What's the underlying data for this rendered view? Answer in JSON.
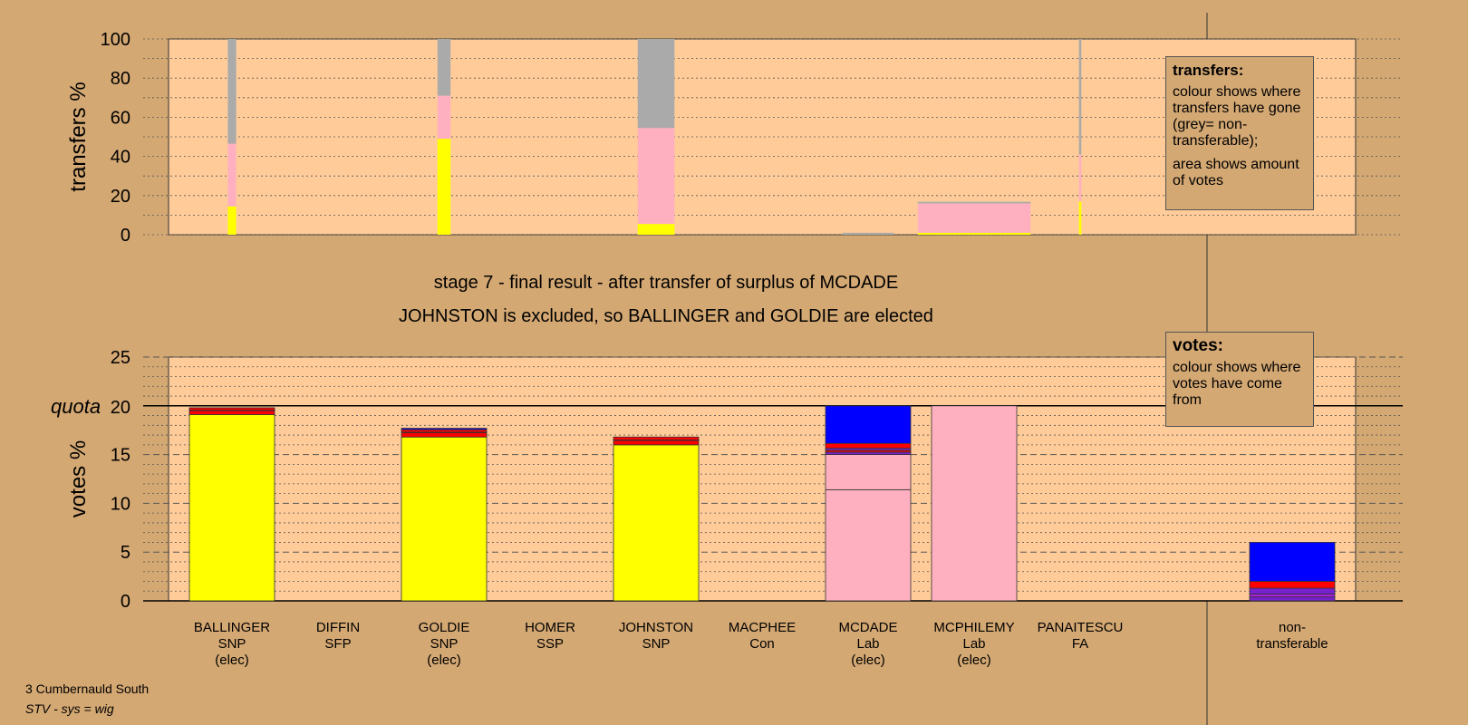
{
  "chart_data": [
    {
      "type": "bar",
      "subtype": "stacked-transfers",
      "ylabel": "transfers %",
      "ylim": [
        0,
        100
      ],
      "yticks": [
        0,
        20,
        40,
        60,
        80,
        100
      ],
      "columns": [
        {
          "candidate": "BALLINGER",
          "width_share": 0.007,
          "segments": [
            {
              "party": "SNP",
              "color": "#FFFF00",
              "value": 14.5
            },
            {
              "party": "Lab",
              "color": "#FFB0C0",
              "value": 32
            },
            {
              "party": "non-transferable",
              "color": "#AAAAAA",
              "value": 53.5
            }
          ]
        },
        {
          "candidate": "GOLDIE",
          "width_share": 0.011,
          "segments": [
            {
              "party": "SNP",
              "color": "#FFFF00",
              "value": 49
            },
            {
              "party": "Lab",
              "color": "#FFB0C0",
              "value": 22
            },
            {
              "party": "non-transferable",
              "color": "#AAAAAA",
              "value": 29
            }
          ]
        },
        {
          "candidate": "JOHNSTON",
          "width_share": 0.031,
          "segments": [
            {
              "party": "SNP",
              "color": "#FFFF00",
              "value": 5.5
            },
            {
              "party": "Lab",
              "color": "#FFB0C0",
              "value": 49
            },
            {
              "party": "non-transferable",
              "color": "#AAAAAA",
              "value": 45.5
            }
          ]
        },
        {
          "candidate": "MCDADE",
          "width_share": 0.043,
          "segments": [
            {
              "party": "non-transferable",
              "color": "#AAAAAA",
              "value": 1
            }
          ]
        },
        {
          "candidate": "MCPHILEMY",
          "width_share": 0.095,
          "segments": [
            {
              "party": "SNP",
              "color": "#FFFF00",
              "value": 1
            },
            {
              "party": "Lab",
              "color": "#FFB0C0",
              "value": 15
            },
            {
              "party": "non-transferable",
              "color": "#AAAAAA",
              "value": 0.8
            }
          ]
        },
        {
          "candidate": "PANAITESCU",
          "width_share": 0.002,
          "segments": [
            {
              "party": "SNP",
              "color": "#FFFF00",
              "value": 17
            },
            {
              "party": "Lab",
              "color": "#FFB0C0",
              "value": 24
            },
            {
              "party": "non-transferable",
              "color": "#AAAAAA",
              "value": 59
            }
          ]
        }
      ]
    },
    {
      "type": "bar",
      "subtype": "stacked-votes",
      "ylabel": "votes %",
      "ylim": [
        0,
        25
      ],
      "yticks": [
        0,
        5,
        10,
        15,
        20,
        25
      ],
      "quota": 20,
      "quota_label": "quota",
      "categories": [
        {
          "name": "BALLINGER",
          "party": "SNP",
          "status": "(elec)"
        },
        {
          "name": "DIFFIN",
          "party": "SFP",
          "status": ""
        },
        {
          "name": "GOLDIE",
          "party": "SNP",
          "status": "(elec)"
        },
        {
          "name": "HOMER",
          "party": "SSP",
          "status": ""
        },
        {
          "name": "JOHNSTON",
          "party": "SNP",
          "status": ""
        },
        {
          "name": "MACPHEE",
          "party": "Con",
          "status": ""
        },
        {
          "name": "MCDADE",
          "party": "Lab",
          "status": "(elec)"
        },
        {
          "name": "MCPHILEMY",
          "party": "Lab",
          "status": "(elec)"
        },
        {
          "name": "PANAITESCU",
          "party": "FA",
          "status": ""
        },
        {
          "name": "",
          "party": "",
          "status": ""
        },
        {
          "name": "non-",
          "party": "transferable",
          "status": ""
        }
      ],
      "stacks": [
        [
          {
            "color": "#FFFF00",
            "value": 19.1
          },
          {
            "color": "#FF0000",
            "value": 0.4
          },
          {
            "color": "#7722CC",
            "value": 0.05
          },
          {
            "color": "#FF0000",
            "value": 0.25
          }
        ],
        [],
        [
          {
            "color": "#FFFF00",
            "value": 16.8
          },
          {
            "color": "#FF0000",
            "value": 0.45
          },
          {
            "color": "#7722CC",
            "value": 0.05
          },
          {
            "color": "#FF0000",
            "value": 0.25
          },
          {
            "color": "#0000FF",
            "value": 0.15
          }
        ],
        [],
        [
          {
            "color": "#FFFF00",
            "value": 16.0
          },
          {
            "color": "#FF0000",
            "value": 0.45
          },
          {
            "color": "#7722CC",
            "value": 0.05
          },
          {
            "color": "#FF0000",
            "value": 0.3
          }
        ],
        [],
        [
          {
            "color": "#FFB0C0",
            "value": 11.4
          },
          {
            "color": "#FFB0C0",
            "value": 3.6
          },
          {
            "color": "#7722CC",
            "value": 0.25
          },
          {
            "color": "#FF0000",
            "value": 0.2
          },
          {
            "color": "#7722CC",
            "value": 0.2
          },
          {
            "color": "#FF0000",
            "value": 0.5
          },
          {
            "color": "#0000FF",
            "value": 3.85
          }
        ],
        [
          {
            "color": "#FFB0C0",
            "value": 20.0
          }
        ],
        [],
        [],
        [
          {
            "color": "#7722CC",
            "value": 0.4
          },
          {
            "color": "#AA22DD",
            "value": 0.3
          },
          {
            "color": "#7722CC",
            "value": 0.6
          },
          {
            "color": "#FF0000",
            "value": 0.7
          },
          {
            "color": "#0000FF",
            "value": 4.0
          }
        ]
      ]
    }
  ],
  "stage_title": "stage 7 - final result - after transfer of surplus of MCDADE",
  "stage_subtitle": "JOHNSTON is excluded, so BALLINGER and GOLDIE are elected",
  "transfers_legend": {
    "title": "transfers:",
    "line1": "colour shows where transfers have gone (grey= non-transferable);",
    "line2": "area shows amount of votes"
  },
  "votes_legend": {
    "title": "votes:",
    "line1": "colour shows where votes have come from"
  },
  "footer": {
    "ward": "3 Cumbernauld South",
    "system": "STV - sys = wig"
  },
  "colors": {
    "background": "#D4A873",
    "plot_area": "#FFCC99",
    "snp": "#FFFF00",
    "lab": "#FFB0C0",
    "con": "#0000FF",
    "nontransferable": "#AAAAAA"
  }
}
